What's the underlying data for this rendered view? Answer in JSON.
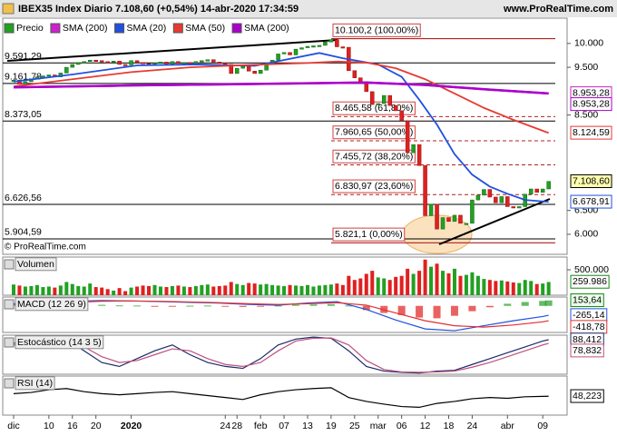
{
  "header": {
    "title": "IBEX35 Index Diario 7.108,60 (+0,54%) 14-abr-2020 17:34:59",
    "site": "www.ProRealTime.com",
    "watermark": "© ProRealTime.com"
  },
  "chart_data": [
    {
      "type": "candlestick",
      "x": [
        0,
        1,
        2,
        3,
        4,
        5,
        6,
        7,
        8,
        9,
        10,
        11,
        12,
        13,
        14,
        15,
        16,
        17,
        18,
        19,
        20,
        21,
        22,
        23,
        24,
        25,
        26,
        27,
        28,
        29,
        30,
        31,
        32,
        33,
        34,
        35,
        36,
        37,
        38,
        39,
        40,
        41,
        42,
        43,
        44,
        45,
        46,
        47,
        48,
        49,
        50,
        51,
        52,
        53,
        54,
        55,
        56,
        57,
        58,
        59,
        60,
        61,
        62,
        63,
        64,
        65,
        66,
        67,
        68,
        69,
        70,
        71,
        72,
        73,
        74,
        75,
        76,
        77,
        78,
        79,
        80,
        81,
        82,
        83,
        84,
        85,
        86,
        87,
        88,
        89,
        90,
        91
      ],
      "xlim": [
        -1.85,
        94.14
      ],
      "ylim": [
        5580,
        10530
      ],
      "yticks": [
        {
          "value": 10000,
          "label": "10.000"
        },
        {
          "value": 9500,
          "label": "9.500"
        },
        {
          "value": 8500,
          "label": "8.500"
        },
        {
          "value": 6500,
          "label": "6.500"
        },
        {
          "value": 6000,
          "label": "6.000"
        }
      ],
      "series": [
        {
          "name": "Precio",
          "color": "#22a022",
          "color_down": "#e02020",
          "end_label": "7.108,60",
          "values": [
            9230,
            9150,
            9200,
            9260,
            9300,
            9320,
            9340,
            9300,
            9380,
            9500,
            9560,
            9600,
            9620,
            9650,
            9640,
            9620,
            9600,
            9630,
            9560,
            9550,
            9640,
            9600,
            9580,
            9560,
            9590,
            9610,
            9570,
            9620,
            9580,
            9600,
            9590,
            9620,
            9640,
            9660,
            9610,
            9590,
            9560,
            9370,
            9480,
            9520,
            9420,
            9370,
            9440,
            9580,
            9650,
            9780,
            9810,
            9760,
            9880,
            9910,
            9940,
            9950,
            9960,
            10030,
            10080,
            9930,
            9920,
            9430,
            9280,
            9200,
            8990,
            8720,
            8740,
            8910,
            8700,
            8590,
            8380,
            7710,
            7880,
            7440,
            6390,
            6630,
            6110,
            6350,
            6270,
            6400,
            6230,
            6230,
            6720,
            6820,
            6940,
            6780,
            6660,
            6790,
            6580,
            6570,
            6580,
            6840,
            6950,
            6880,
            6950,
            7108.6
          ]
        },
        {
          "name": "SMA (200)",
          "color": "#cc22cc",
          "end_label": "8.953,28",
          "x": [
            0,
            20,
            40,
            60,
            70,
            80,
            91
          ],
          "values": [
            9080,
            9120,
            9150,
            9180,
            9130,
            9040,
            8953.28
          ]
        },
        {
          "name": "SMA (20)",
          "color": "#2050e0",
          "end_label": "6.678,91",
          "x": [
            0,
            10,
            21,
            31,
            41,
            52,
            56,
            62,
            66,
            69,
            72,
            75,
            78,
            81,
            84,
            87,
            91
          ],
          "values": [
            9200,
            9350,
            9540,
            9560,
            9530,
            9800,
            9690,
            9560,
            9300,
            8820,
            8300,
            7680,
            7250,
            7000,
            6850,
            6720,
            6678.91
          ]
        },
        {
          "name": "SMA (50)",
          "color": "#e83a30",
          "end_label": "8.124,59",
          "x": [
            0,
            10,
            20,
            30,
            40,
            50,
            55,
            60,
            65,
            70,
            75,
            80,
            85,
            91
          ],
          "values": [
            9100,
            9250,
            9400,
            9500,
            9550,
            9590,
            9620,
            9600,
            9480,
            9250,
            8950,
            8650,
            8400,
            8124.59
          ]
        },
        {
          "name": "SMA (200)",
          "color": "#aa00cc",
          "end_label": "8.953,28",
          "x": [
            0,
            20,
            40,
            60,
            70,
            80,
            91
          ],
          "values": [
            9080,
            9120,
            9150,
            9180,
            9130,
            9040,
            8953.28
          ]
        }
      ],
      "levels": [
        {
          "value": 9591.29,
          "label": "9.591,29"
        },
        {
          "value": 9161.78,
          "label": "9.161,78"
        },
        {
          "value": 8373.05,
          "label": "8.373,05"
        },
        {
          "value": 6626.56,
          "label": "6.626,56"
        },
        {
          "value": 5904.59,
          "label": "5.904,59"
        }
      ],
      "fibonacci": [
        {
          "value": 10100.2,
          "label": "10.100,2 (100,00%)"
        },
        {
          "value": 8465.58,
          "label": "8.465,58 (61,80%)"
        },
        {
          "value": 7960.65,
          "label": "7.960,65 (50,00%)"
        },
        {
          "value": 7455.72,
          "label": "7.455,72 (38,20%)"
        },
        {
          "value": 6830.97,
          "label": "6.830,97 (23,60%)"
        },
        {
          "value": 5821.1,
          "label": "5.821,1 (0,00%)"
        }
      ],
      "fib_color": "#b02020"
    },
    {
      "type": "bar",
      "title": "Volumen",
      "xlim": [
        -1.85,
        94.14
      ],
      "ylim": [
        0,
        750000
      ],
      "yticks": [
        {
          "value": 500000,
          "label": "500.000"
        }
      ],
      "color": "#22a022",
      "color_down": "#e02020",
      "end_label": "259.986",
      "values": [
        210000,
        190000,
        170000,
        180000,
        200000,
        160000,
        170000,
        150000,
        190000,
        260000,
        220000,
        180000,
        170000,
        230000,
        160000,
        150000,
        120000,
        90000,
        140000,
        80000,
        150000,
        170000,
        190000,
        180000,
        200000,
        170000,
        160000,
        180000,
        190000,
        170000,
        160000,
        180000,
        200000,
        210000,
        170000,
        180000,
        190000,
        260000,
        220000,
        200000,
        240000,
        230000,
        210000,
        220000,
        200000,
        190000,
        180000,
        200000,
        190000,
        180000,
        200000,
        170000,
        190000,
        200000,
        210000,
        230000,
        200000,
        380000,
        300000,
        330000,
        420000,
        480000,
        350000,
        330000,
        300000,
        360000,
        380000,
        520000,
        420000,
        480000,
        700000,
        560000,
        620000,
        480000,
        430000,
        520000,
        380000,
        400000,
        450000,
        380000,
        320000,
        300000,
        280000,
        290000,
        270000,
        250000,
        240000,
        300000,
        280000,
        220000,
        230000,
        259986
      ]
    },
    {
      "type": "macd",
      "title": "MACD (12 26 9)",
      "xlim": [
        -1.85,
        94.14
      ],
      "ylim": [
        -750,
        250
      ],
      "histogram": {
        "color": "#22a022",
        "color_down": "#e02020",
        "end_label": "153,64",
        "x": [
          0,
          3,
          6,
          9,
          12,
          15,
          18,
          21,
          24,
          27,
          30,
          33,
          36,
          39,
          42,
          45,
          48,
          51,
          54,
          57,
          60,
          63,
          66,
          69,
          72,
          75,
          78,
          81,
          84,
          87,
          90,
          91
        ],
        "values": [
          40,
          50,
          60,
          55,
          45,
          30,
          15,
          10,
          -5,
          -10,
          5,
          10,
          -5,
          -30,
          -20,
          10,
          30,
          40,
          50,
          10,
          -120,
          -200,
          -260,
          -330,
          -350,
          -280,
          -150,
          -40,
          60,
          110,
          140,
          153.64
        ]
      },
      "series": [
        {
          "color": "#2050e0",
          "end_label": "-265,14",
          "x": [
            0,
            5,
            10,
            15,
            20,
            25,
            30,
            35,
            40,
            45,
            50,
            55,
            60,
            65,
            70,
            75,
            80,
            85,
            90,
            91
          ],
          "values": [
            60,
            90,
            130,
            150,
            140,
            120,
            100,
            80,
            40,
            20,
            80,
            120,
            -100,
            -400,
            -650,
            -700,
            -560,
            -420,
            -300,
            -265.14
          ]
        },
        {
          "color": "#e03030",
          "end_label": "-418,78",
          "x": [
            0,
            5,
            10,
            15,
            20,
            25,
            30,
            35,
            40,
            45,
            50,
            55,
            60,
            65,
            70,
            75,
            80,
            85,
            90,
            91
          ],
          "values": [
            30,
            60,
            100,
            130,
            140,
            130,
            110,
            90,
            60,
            40,
            60,
            90,
            20,
            -200,
            -420,
            -560,
            -600,
            -540,
            -450,
            -418.78
          ]
        }
      ]
    },
    {
      "type": "line",
      "title": "Estocástico (14 3 5)",
      "xlim": [
        -1.85,
        94.14
      ],
      "ylim": [
        0,
        100
      ],
      "series": [
        {
          "color": "#1a2a6c",
          "end_label": "88,412",
          "x": [
            0,
            3,
            6,
            9,
            12,
            15,
            18,
            21,
            24,
            27,
            30,
            33,
            36,
            39,
            42,
            45,
            48,
            51,
            54,
            57,
            60,
            63,
            66,
            69,
            72,
            75,
            78,
            81,
            84,
            87,
            90,
            91
          ],
          "values": [
            80,
            70,
            85,
            90,
            60,
            30,
            20,
            40,
            60,
            75,
            50,
            30,
            20,
            15,
            40,
            75,
            90,
            95,
            92,
            60,
            20,
            8,
            5,
            3,
            8,
            10,
            25,
            40,
            55,
            70,
            85,
            88.412
          ]
        },
        {
          "color": "#c0507a",
          "end_label": "78,832",
          "x": [
            0,
            3,
            6,
            9,
            12,
            15,
            18,
            21,
            24,
            27,
            30,
            33,
            36,
            39,
            42,
            45,
            48,
            51,
            54,
            57,
            60,
            63,
            66,
            69,
            72,
            75,
            78,
            81,
            84,
            87,
            90,
            91
          ],
          "values": [
            75,
            75,
            80,
            85,
            70,
            45,
            30,
            35,
            50,
            65,
            60,
            40,
            25,
            20,
            30,
            60,
            85,
            92,
            93,
            75,
            35,
            12,
            6,
            5,
            6,
            8,
            18,
            30,
            45,
            60,
            75,
            78.832
          ]
        }
      ]
    },
    {
      "type": "line",
      "title": "RSI (14)",
      "xlim": [
        -1.85,
        94.14
      ],
      "ylim": [
        0,
        100
      ],
      "series": [
        {
          "color": "#000000",
          "end_label": "48,223",
          "x": [
            0,
            3,
            6,
            9,
            12,
            15,
            18,
            21,
            24,
            27,
            30,
            33,
            36,
            39,
            42,
            45,
            48,
            51,
            54,
            57,
            60,
            63,
            66,
            69,
            72,
            75,
            78,
            81,
            84,
            87,
            90,
            91
          ],
          "values": [
            55,
            58,
            65,
            68,
            60,
            55,
            52,
            55,
            58,
            60,
            55,
            50,
            45,
            40,
            52,
            60,
            65,
            68,
            70,
            45,
            35,
            28,
            22,
            20,
            30,
            35,
            42,
            45,
            43,
            47,
            48,
            48.223
          ]
        }
      ],
      "xticks": [
        {
          "value": 0,
          "label": "dic"
        },
        {
          "value": 6,
          "label": "10"
        },
        {
          "value": 10,
          "label": "16"
        },
        {
          "value": 14,
          "label": "20"
        },
        {
          "value": 20,
          "label": "2020"
        },
        {
          "value": 36,
          "label": "24"
        },
        {
          "value": 38,
          "label": "28"
        },
        {
          "value": 42,
          "label": "feb"
        },
        {
          "value": 46,
          "label": "07"
        },
        {
          "value": 50,
          "label": "13"
        },
        {
          "value": 54,
          "label": "19"
        },
        {
          "value": 58,
          "label": "25"
        },
        {
          "value": 62,
          "label": "mar"
        },
        {
          "value": 66,
          "label": "06"
        },
        {
          "value": 70,
          "label": "12"
        },
        {
          "value": 74,
          "label": "18"
        },
        {
          "value": 78,
          "label": "24"
        },
        {
          "value": 84,
          "label": "abr"
        },
        {
          "value": 90,
          "label": "09"
        }
      ]
    }
  ]
}
